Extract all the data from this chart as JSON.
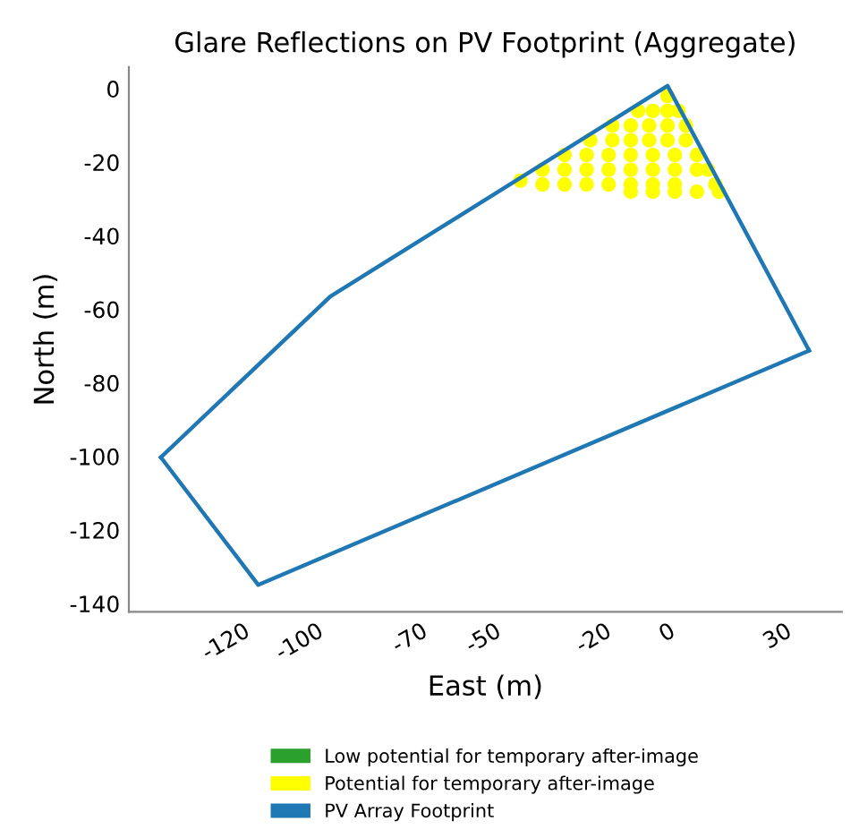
{
  "chart_data": {
    "type": "line",
    "title": "Glare Reflections on PV Footprint (Aggregate)",
    "xlabel": "East (m)",
    "ylabel": "North (m)",
    "xlim": [
      -146.5,
      47.4
    ],
    "ylim": [
      -142.2,
      5.9
    ],
    "xticks": [
      -120,
      -100,
      -70,
      -50,
      -20,
      0,
      30
    ],
    "yticks": [
      0,
      -20,
      -40,
      -60,
      -80,
      -100,
      -120,
      -140
    ],
    "grid": false,
    "legend": "bottom",
    "series": [
      {
        "name": "Low potential for temporary after-image",
        "color": "#2ca02c",
        "type": "scatter"
      },
      {
        "name": "Potential for temporary after-image",
        "color": "#ffff00",
        "type": "scatter",
        "marker": "circle",
        "x": [
          0,
          -8,
          -4,
          0,
          3,
          -15,
          -10,
          -5,
          0,
          5,
          -21,
          -15,
          -10,
          -5,
          0,
          5,
          -28,
          -22,
          -16,
          -10,
          -4,
          2,
          8,
          -34,
          -28,
          -22,
          -16,
          -10,
          -4,
          2,
          8,
          11,
          -40,
          -34,
          -28,
          -22,
          -16,
          -10,
          -4,
          2,
          13,
          -10,
          -4,
          2,
          8,
          14
        ],
        "values": [
          -2,
          -6,
          -6,
          -6,
          -6,
          -10,
          -10,
          -10,
          -10,
          -10,
          -14,
          -14,
          -14,
          -14,
          -14,
          -14,
          -18,
          -18,
          -18,
          -18,
          -18,
          -18,
          -18,
          -22,
          -22,
          -22,
          -22,
          -22,
          -22,
          -22,
          -22,
          -22,
          -25,
          -26,
          -26,
          -26,
          -26,
          -26,
          -26,
          -26,
          -26,
          -28,
          -28,
          -28,
          -28,
          -28
        ]
      },
      {
        "name": "PV Array Footprint",
        "color": "#1f77b4",
        "line_style": "solid",
        "x": [
          -137.8,
          -91.7,
          0,
          38.5
        ],
        "values": [
          -100.2,
          -56.5,
          0.8,
          -71.2
        ]
      },
      {
        "color": "#1f77b4",
        "line_style": "solid",
        "x": [
          -137.8,
          -111.3,
          38.5
        ],
        "values": [
          -100.2,
          -134.9,
          -71.2
        ]
      }
    ]
  }
}
